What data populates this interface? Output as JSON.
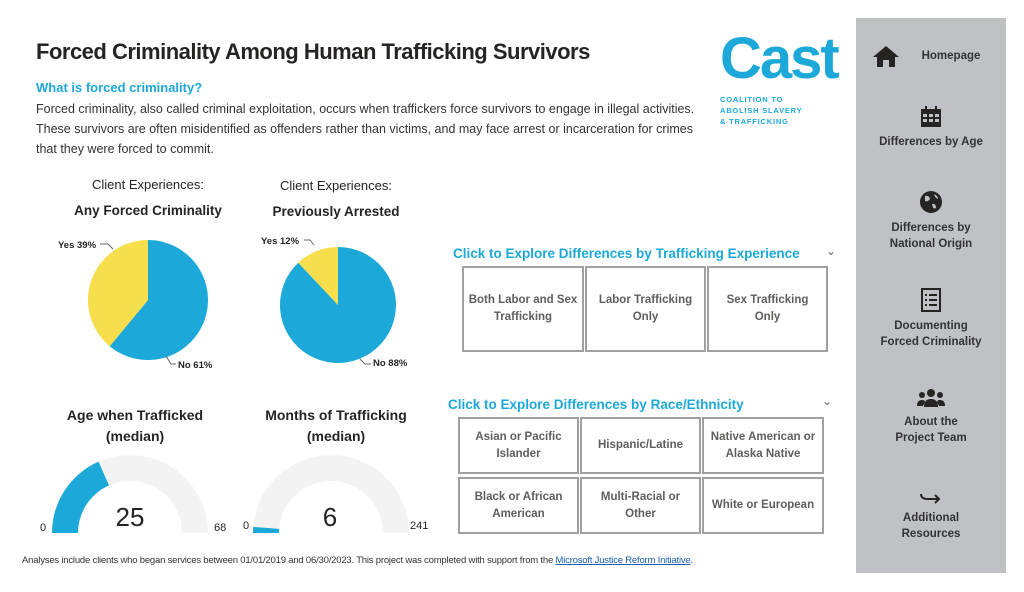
{
  "header": {
    "title": "Forced Criminality Among Human Trafficking Survivors",
    "question": "What is forced criminality?",
    "description": "Forced criminality, also called criminal exploitation, occurs when traffickers force survivors to engage in illegal activities. These survivors are often misidentified as offenders rather than victims, and may face arrest or incarceration for crimes that they were forced to commit."
  },
  "logo": {
    "name": "Cast",
    "tagline": [
      "COALITION TO",
      "ABOLISH SLAVERY",
      "& TRAFFICKING"
    ]
  },
  "colors": {
    "accent": "#1ca9d9",
    "yes": "#f6de4c",
    "no": "#1ca9d9",
    "gauge_track": "#f3f3f3",
    "sidebar": "#bfc1c4"
  },
  "chart_data": [
    {
      "type": "pie",
      "subtitle": "Client Experiences:",
      "title": "Any Forced Criminality",
      "slices": [
        {
          "label": "No",
          "value": 61,
          "text": "No 61%"
        },
        {
          "label": "Yes",
          "value": 39,
          "text": "Yes 39%"
        }
      ]
    },
    {
      "type": "pie",
      "subtitle": "Client Experiences:",
      "title": "Previously Arrested",
      "slices": [
        {
          "label": "No",
          "value": 88,
          "text": "No 88%"
        },
        {
          "label": "Yes",
          "value": 12,
          "text": "Yes 12%"
        }
      ]
    },
    {
      "type": "gauge",
      "title": "Age when Trafficked",
      "subtitle": "(median)",
      "value": 25,
      "min": 0,
      "max": 68,
      "value_text": "25",
      "min_text": "0",
      "max_text": "68"
    },
    {
      "type": "gauge",
      "title": "Months of Trafficking",
      "subtitle": "(median)",
      "value": 6,
      "min": 0,
      "max": 241,
      "value_text": "6",
      "min_text": "0",
      "max_text": "241"
    }
  ],
  "trafficking": {
    "heading": "Click to Explore Differences by Trafficking Experience",
    "buttons": [
      "Both Labor and Sex Trafficking",
      "Labor Trafficking Only",
      "Sex Trafficking Only"
    ]
  },
  "race": {
    "heading": "Click to Explore Differences by Race/Ethnicity",
    "buttons": [
      "Asian or Pacific Islander",
      "Hispanic/Latine",
      "Native American or Alaska Native",
      "Black or African American",
      "Multi-Racial or Other",
      "White or European"
    ]
  },
  "footer": {
    "text": "Analyses include clients who began services between 01/01/2019 and 06/30/2023. This project was completed with support from the ",
    "link": "Microsoft Justice Reform Initiative",
    "end": "."
  },
  "sidebar": {
    "items": [
      {
        "label": "Homepage",
        "icon": "home-icon"
      },
      {
        "label": "Differences by Age",
        "icon": "calendar-icon"
      },
      {
        "label": "Differences by National Origin",
        "icon": "globe-icon"
      },
      {
        "label": "Documenting Forced Criminality",
        "icon": "document-list-icon"
      },
      {
        "label": "About the Project Team",
        "icon": "people-icon"
      },
      {
        "label": "Additional Resources",
        "icon": "arrow-right-icon"
      }
    ]
  }
}
